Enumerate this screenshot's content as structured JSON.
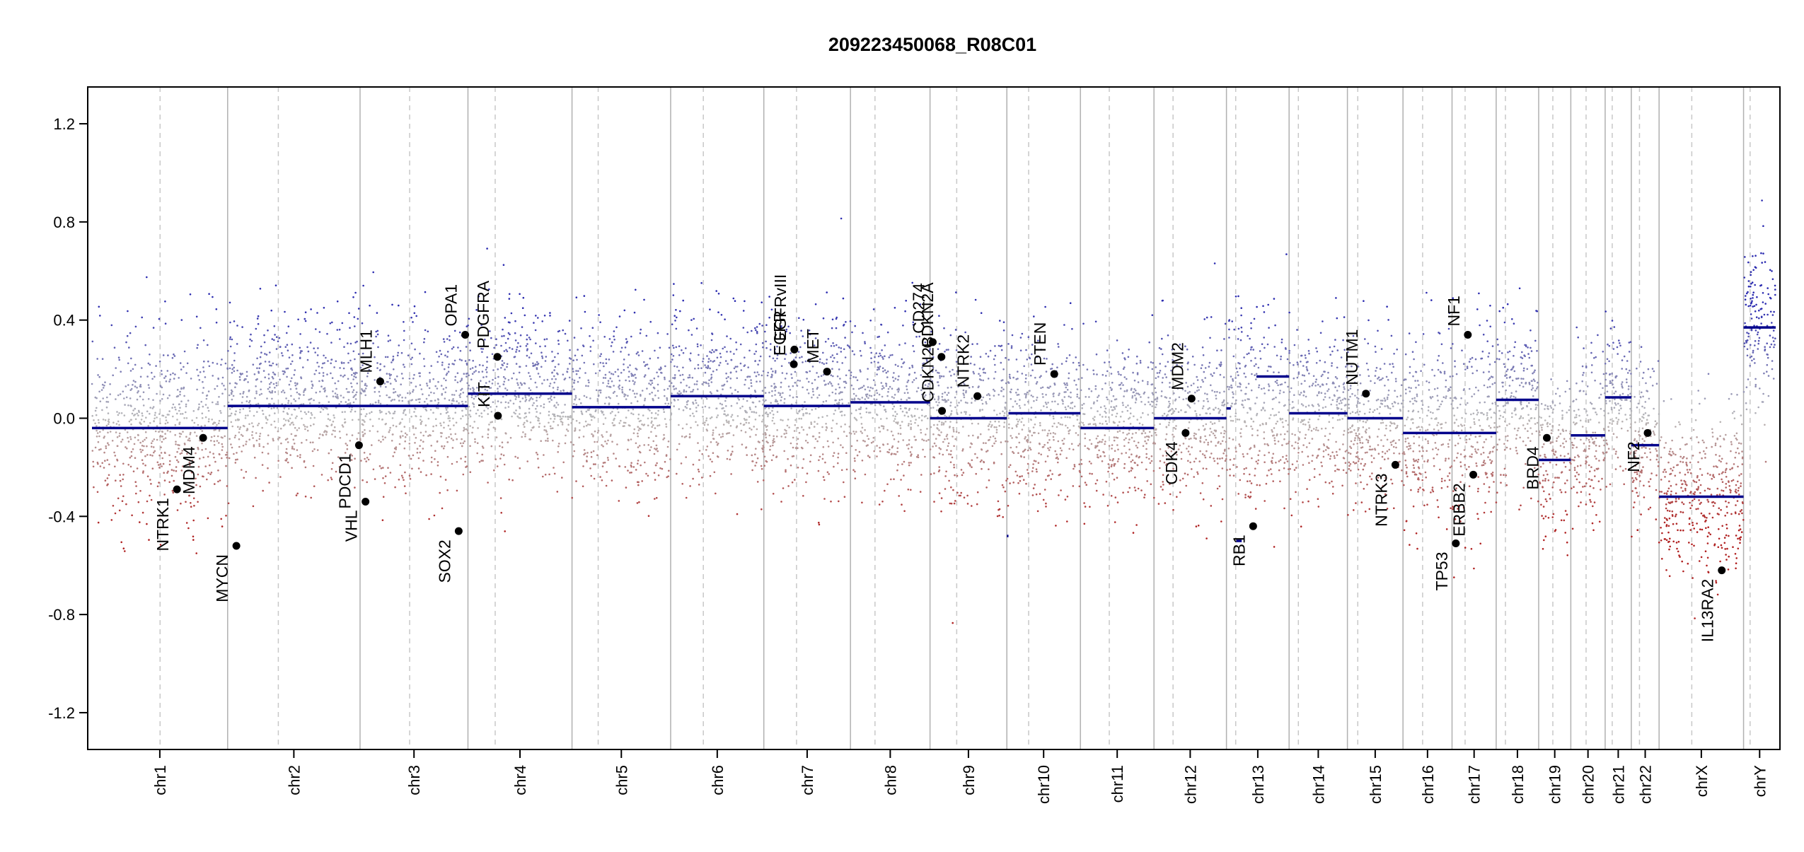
{
  "chart_data": {
    "type": "scatter",
    "title": "209223450068_R08C01",
    "xlabel": "",
    "ylabel": "",
    "ylim": [
      -1.35,
      1.35
    ],
    "yticks": [
      "1.2",
      "0.8",
      "0.4",
      "0.0",
      "-0.4",
      "-0.8",
      "-1.2"
    ],
    "ytick_values": [
      1.2,
      0.8,
      0.4,
      0.0,
      -0.4,
      -0.8,
      -1.2
    ],
    "grid": false,
    "colors": {
      "gain": "#2b2bb0",
      "loss": "#b02020",
      "neutral": "#b8b8b8",
      "segment": "#00008b",
      "chrom_boundary": "#b0b0b0",
      "centromere": "#c8c8c8",
      "gene_marker": "#000000"
    },
    "chromosomes": [
      {
        "name": "chr1",
        "length": 249,
        "centromere": 125
      },
      {
        "name": "chr2",
        "length": 243,
        "centromere": 93
      },
      {
        "name": "chr3",
        "length": 198,
        "centromere": 91
      },
      {
        "name": "chr4",
        "length": 191,
        "centromere": 50
      },
      {
        "name": "chr5",
        "length": 181,
        "centromere": 48
      },
      {
        "name": "chr6",
        "length": 171,
        "centromere": 60
      },
      {
        "name": "chr7",
        "length": 159,
        "centromere": 60
      },
      {
        "name": "chr8",
        "length": 146,
        "centromere": 45
      },
      {
        "name": "chr9",
        "length": 141,
        "centromere": 49
      },
      {
        "name": "chr10",
        "length": 135,
        "centromere": 40
      },
      {
        "name": "chr11",
        "length": 135,
        "centromere": 53
      },
      {
        "name": "chr12",
        "length": 133,
        "centromere": 35
      },
      {
        "name": "chr13",
        "length": 115,
        "centromere": 17
      },
      {
        "name": "chr14",
        "length": 107,
        "centromere": 17
      },
      {
        "name": "chr15",
        "length": 102,
        "centromere": 19
      },
      {
        "name": "chr16",
        "length": 90,
        "centromere": 36
      },
      {
        "name": "chr17",
        "length": 81,
        "centromere": 24
      },
      {
        "name": "chr18",
        "length": 78,
        "centromere": 17
      },
      {
        "name": "chr19",
        "length": 59,
        "centromere": 26
      },
      {
        "name": "chr20",
        "length": 63,
        "centromere": 28
      },
      {
        "name": "chr21",
        "length": 48,
        "centromere": 13
      },
      {
        "name": "chr22",
        "length": 51,
        "centromere": 15
      },
      {
        "name": "chrX",
        "length": 155,
        "centromere": 60
      },
      {
        "name": "chrY",
        "length": 59,
        "centromere": 12
      }
    ],
    "segments": [
      {
        "chrom": "chr1",
        "start": 0,
        "end": 249,
        "value": -0.04
      },
      {
        "chrom": "chr2",
        "start": 0,
        "end": 243,
        "value": 0.05
      },
      {
        "chrom": "chr3",
        "start": 0,
        "end": 198,
        "value": 0.05
      },
      {
        "chrom": "chr4",
        "start": 0,
        "end": 191,
        "value": 0.1
      },
      {
        "chrom": "chr5",
        "start": 0,
        "end": 181,
        "value": 0.045
      },
      {
        "chrom": "chr6",
        "start": 0,
        "end": 171,
        "value": 0.09
      },
      {
        "chrom": "chr7",
        "start": 0,
        "end": 159,
        "value": 0.05
      },
      {
        "chrom": "chr8",
        "start": 0,
        "end": 146,
        "value": 0.065
      },
      {
        "chrom": "chr9",
        "start": 0,
        "end": 141,
        "value": 0.0
      },
      {
        "chrom": "chr10",
        "start": 0,
        "end": 3,
        "value": -0.48
      },
      {
        "chrom": "chr10",
        "start": 3,
        "end": 135,
        "value": 0.02
      },
      {
        "chrom": "chr11",
        "start": 0,
        "end": 135,
        "value": -0.04
      },
      {
        "chrom": "chr12",
        "start": 0,
        "end": 133,
        "value": 0.0
      },
      {
        "chrom": "chr13",
        "start": 0,
        "end": 8,
        "value": 0.04
      },
      {
        "chrom": "chr13",
        "start": 18,
        "end": 28,
        "value": -0.5
      },
      {
        "chrom": "chr13",
        "start": 55,
        "end": 115,
        "value": 0.17
      },
      {
        "chrom": "chr14",
        "start": 0,
        "end": 107,
        "value": 0.02
      },
      {
        "chrom": "chr15",
        "start": 0,
        "end": 102,
        "value": 0.0
      },
      {
        "chrom": "chr16",
        "start": 0,
        "end": 90,
        "value": -0.06
      },
      {
        "chrom": "chr17",
        "start": 0,
        "end": 81,
        "value": -0.06
      },
      {
        "chrom": "chr18",
        "start": 0,
        "end": 78,
        "value": 0.075
      },
      {
        "chrom": "chr19",
        "start": 0,
        "end": 59,
        "value": -0.17
      },
      {
        "chrom": "chr20",
        "start": 0,
        "end": 63,
        "value": -0.07
      },
      {
        "chrom": "chr21",
        "start": 0,
        "end": 48,
        "value": 0.085
      },
      {
        "chrom": "chr22",
        "start": 0,
        "end": 51,
        "value": -0.11
      },
      {
        "chrom": "chrX",
        "start": 0,
        "end": 155,
        "value": -0.32
      },
      {
        "chrom": "chrY",
        "start": 0,
        "end": 59,
        "value": 0.37
      }
    ],
    "noise": [
      {
        "chrom": "chr1",
        "center": -0.05,
        "spread": 0.34
      },
      {
        "chrom": "chr2",
        "center": 0.08,
        "spread": 0.3
      },
      {
        "chrom": "chr3",
        "center": 0.05,
        "spread": 0.3
      },
      {
        "chrom": "chr4",
        "center": 0.1,
        "spread": 0.3
      },
      {
        "chrom": "chr5",
        "center": 0.05,
        "spread": 0.3
      },
      {
        "chrom": "chr6",
        "center": 0.09,
        "spread": 0.3
      },
      {
        "chrom": "chr7",
        "center": 0.06,
        "spread": 0.32
      },
      {
        "chrom": "chr8",
        "center": 0.07,
        "spread": 0.3
      },
      {
        "chrom": "chr9",
        "center": 0.01,
        "spread": 0.32
      },
      {
        "chrom": "chr10",
        "center": 0.0,
        "spread": 0.3
      },
      {
        "chrom": "chr11",
        "center": -0.03,
        "spread": 0.3
      },
      {
        "chrom": "chr12",
        "center": 0.0,
        "spread": 0.3
      },
      {
        "chrom": "chr13",
        "center": 0.05,
        "spread": 0.34
      },
      {
        "chrom": "chr14",
        "center": 0.03,
        "spread": 0.3
      },
      {
        "chrom": "chr15",
        "center": 0.0,
        "spread": 0.32
      },
      {
        "chrom": "chr16",
        "center": -0.05,
        "spread": 0.32
      },
      {
        "chrom": "chr17",
        "center": -0.05,
        "spread": 0.36
      },
      {
        "chrom": "chr18",
        "center": 0.07,
        "spread": 0.3
      },
      {
        "chrom": "chr19",
        "center": -0.16,
        "spread": 0.3
      },
      {
        "chrom": "chr20",
        "center": -0.07,
        "spread": 0.3
      },
      {
        "chrom": "chr21",
        "center": 0.08,
        "spread": 0.3
      },
      {
        "chrom": "chr22",
        "center": -0.1,
        "spread": 0.3
      },
      {
        "chrom": "chrX",
        "center": -0.32,
        "spread": 0.3
      },
      {
        "chrom": "chrY",
        "center": 0.37,
        "spread": 0.3
      }
    ],
    "genes": [
      {
        "name": "NTRK1",
        "chrom": "chr1",
        "pos": 156,
        "value": -0.29
      },
      {
        "name": "MDM4",
        "chrom": "chr1",
        "pos": 204,
        "value": -0.08
      },
      {
        "name": "MYCN",
        "chrom": "chr2",
        "pos": 16,
        "value": -0.52
      },
      {
        "name": "PDCD1",
        "chrom": "chr2",
        "pos": 241,
        "value": -0.11
      },
      {
        "name": "VHL",
        "chrom": "chr3",
        "pos": 10,
        "value": -0.34
      },
      {
        "name": "MLH1",
        "chrom": "chr3",
        "pos": 37,
        "value": 0.15
      },
      {
        "name": "SOX2",
        "chrom": "chr3",
        "pos": 181,
        "value": -0.46
      },
      {
        "name": "OPA1",
        "chrom": "chr3",
        "pos": 193,
        "value": 0.34
      },
      {
        "name": "KIT",
        "chrom": "chr4",
        "pos": 55,
        "value": 0.01
      },
      {
        "name": "PDGFRA",
        "chrom": "chr4",
        "pos": 54,
        "value": 0.25
      },
      {
        "name": "EGFR",
        "chrom": "chr7",
        "pos": 55,
        "value": 0.22
      },
      {
        "name": "EGFRvIII",
        "chrom": "chr7",
        "pos": 56,
        "value": 0.28
      },
      {
        "name": "MET",
        "chrom": "chr7",
        "pos": 116,
        "value": 0.19
      },
      {
        "name": "CD274",
        "chrom": "chr9",
        "pos": 5,
        "value": 0.31
      },
      {
        "name": "CDKN2A",
        "chrom": "chr9",
        "pos": 21,
        "value": 0.25
      },
      {
        "name": "CDKN2B",
        "chrom": "chr9",
        "pos": 22,
        "value": 0.03
      },
      {
        "name": "NTRK2",
        "chrom": "chr9",
        "pos": 87,
        "value": 0.09
      },
      {
        "name": "PTEN",
        "chrom": "chr10",
        "pos": 87,
        "value": 0.18
      },
      {
        "name": "CDK4",
        "chrom": "chr12",
        "pos": 58,
        "value": -0.06
      },
      {
        "name": "MDM2",
        "chrom": "chr12",
        "pos": 69,
        "value": 0.08
      },
      {
        "name": "RB1",
        "chrom": "chr13",
        "pos": 49,
        "value": -0.44
      },
      {
        "name": "NUTM1",
        "chrom": "chr15",
        "pos": 34,
        "value": 0.1
      },
      {
        "name": "NTRK3",
        "chrom": "chr15",
        "pos": 88,
        "value": -0.19
      },
      {
        "name": "TP53",
        "chrom": "chr17",
        "pos": 7,
        "value": -0.51
      },
      {
        "name": "NF1",
        "chrom": "chr17",
        "pos": 29,
        "value": 0.34
      },
      {
        "name": "ERBB2",
        "chrom": "chr17",
        "pos": 39,
        "value": -0.23
      },
      {
        "name": "BRD4",
        "chrom": "chr19",
        "pos": 15,
        "value": -0.08
      },
      {
        "name": "NF2",
        "chrom": "chr22",
        "pos": 30,
        "value": -0.06
      },
      {
        "name": "IL13RA2",
        "chrom": "chrX",
        "pos": 115,
        "value": -0.62
      }
    ]
  }
}
